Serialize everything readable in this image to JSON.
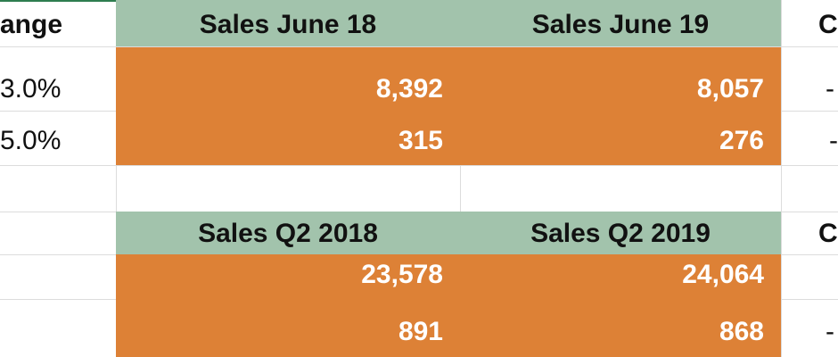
{
  "table1": {
    "partial_header": "ange",
    "headers": [
      "Sales June 18",
      "Sales June 19"
    ],
    "partial_right_header": "C",
    "rows": [
      {
        "left": "3.0%",
        "values": [
          "8,392",
          "8,057"
        ],
        "right": "-"
      },
      {
        "left": "5.0%",
        "values": [
          "315",
          "276"
        ],
        "right": "-"
      }
    ]
  },
  "table2": {
    "headers": [
      "Sales Q2 2018",
      "Sales Q2 2019"
    ],
    "partial_right_header": "C",
    "rows": [
      {
        "values": [
          "23,578",
          "24,064"
        ]
      },
      {
        "values": [
          "891",
          "868"
        ],
        "right": "-"
      }
    ]
  }
}
